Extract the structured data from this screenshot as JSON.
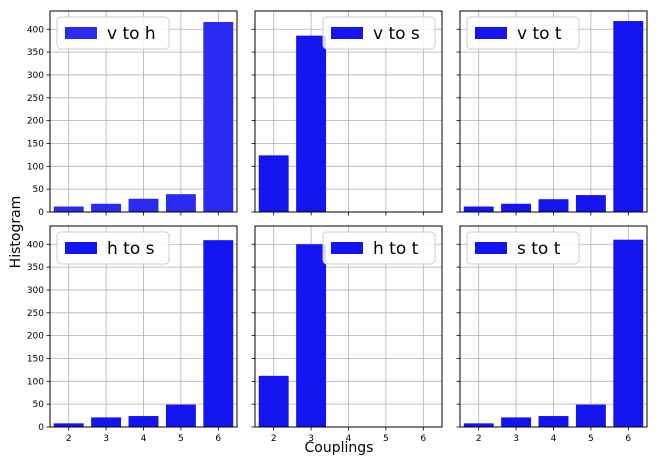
{
  "figure": {
    "xlabel": "Couplings",
    "ylabel": "Histogram"
  },
  "chart_data": [
    {
      "type": "bar",
      "categories": [
        "2",
        "3",
        "4",
        "5",
        "6"
      ],
      "values": [
        12,
        18,
        29,
        39,
        416
      ],
      "series": [
        {
          "name": "v to h",
          "values": [
            12,
            18,
            29,
            39,
            416
          ]
        }
      ],
      "ylim": [
        0,
        440
      ],
      "yticks": [
        0,
        50,
        100,
        150,
        200,
        250,
        300,
        350,
        400
      ],
      "grid": true,
      "legend": "top-left",
      "color": "#2a2af2"
    },
    {
      "type": "bar",
      "categories": [
        "2",
        "3",
        "4",
        "5",
        "6"
      ],
      "values": [
        124,
        386,
        0,
        0,
        0
      ],
      "series": [
        {
          "name": "v to s",
          "values": [
            124,
            386,
            0,
            0,
            0
          ]
        }
      ],
      "ylim": [
        0,
        440
      ],
      "yticks": [
        0,
        50,
        100,
        150,
        200,
        250,
        300,
        350,
        400
      ],
      "grid": true,
      "legend": "top-right",
      "color": "#1414f0"
    },
    {
      "type": "bar",
      "categories": [
        "2",
        "3",
        "4",
        "5",
        "6"
      ],
      "values": [
        12,
        18,
        28,
        37,
        418
      ],
      "series": [
        {
          "name": "v to t",
          "values": [
            12,
            18,
            28,
            37,
            418
          ]
        }
      ],
      "ylim": [
        0,
        440
      ],
      "yticks": [
        0,
        50,
        100,
        150,
        200,
        250,
        300,
        350,
        400
      ],
      "grid": true,
      "legend": "top-left",
      "color": "#1414f0"
    },
    {
      "type": "bar",
      "categories": [
        "2",
        "3",
        "4",
        "5",
        "6"
      ],
      "values": [
        8,
        21,
        24,
        49,
        409
      ],
      "series": [
        {
          "name": "h to s",
          "values": [
            8,
            21,
            24,
            49,
            409
          ]
        }
      ],
      "ylim": [
        0,
        440
      ],
      "yticks": [
        0,
        50,
        100,
        150,
        200,
        250,
        300,
        350,
        400
      ],
      "grid": true,
      "legend": "top-left",
      "color": "#1414f0"
    },
    {
      "type": "bar",
      "categories": [
        "2",
        "3",
        "4",
        "5",
        "6"
      ],
      "values": [
        112,
        400,
        0,
        0,
        0
      ],
      "series": [
        {
          "name": "h to t",
          "values": [
            112,
            400,
            0,
            0,
            0
          ]
        }
      ],
      "ylim": [
        0,
        440
      ],
      "yticks": [
        0,
        50,
        100,
        150,
        200,
        250,
        300,
        350,
        400
      ],
      "grid": true,
      "legend": "top-right",
      "color": "#1414f0"
    },
    {
      "type": "bar",
      "categories": [
        "2",
        "3",
        "4",
        "5",
        "6"
      ],
      "values": [
        8,
        21,
        24,
        49,
        410
      ],
      "series": [
        {
          "name": "s to t",
          "values": [
            8,
            21,
            24,
            49,
            410
          ]
        }
      ],
      "ylim": [
        0,
        440
      ],
      "yticks": [
        0,
        50,
        100,
        150,
        200,
        250,
        300,
        350,
        400
      ],
      "grid": true,
      "legend": "top-left",
      "color": "#1414f0"
    }
  ]
}
